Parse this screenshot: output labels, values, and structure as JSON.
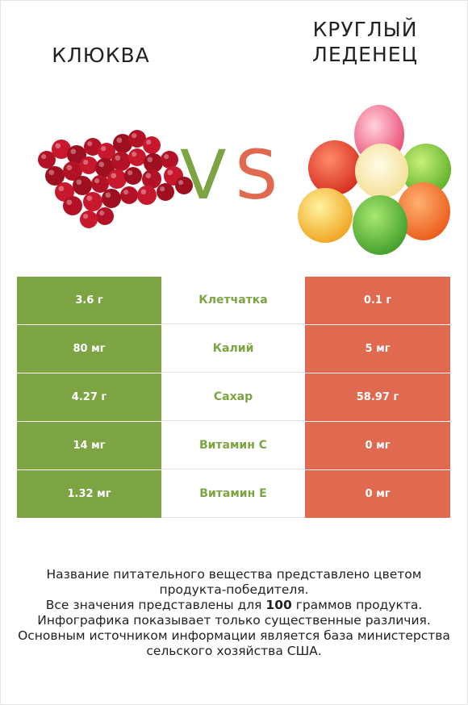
{
  "left_food": {
    "name": "КЛЮКВА"
  },
  "right_food": {
    "name_line1": "КРУГЛЫЙ",
    "name_line2": "ЛЕДЕНЕЦ"
  },
  "vs": {
    "v": "V",
    "s": "S",
    "v_color": "#7da443",
    "s_color": "#e06a4f"
  },
  "colors": {
    "left": "#7da443",
    "right": "#e06a4f"
  },
  "rows": [
    {
      "left": "3.6 г",
      "nutrient": "Клетчатка",
      "right": "0.1 г"
    },
    {
      "left": "80 мг",
      "nutrient": "Калий",
      "right": "5 мг"
    },
    {
      "left": "4.27 г",
      "nutrient": "Сахар",
      "right": "58.97 г"
    },
    {
      "left": "14 мг",
      "nutrient": "Витамин C",
      "right": "0 мг"
    },
    {
      "left": "1.32 мг",
      "nutrient": "Витамин E",
      "right": "0 мг"
    }
  ],
  "footer": {
    "line1": "Название питательного вещества представлено цветом",
    "line2": "продукта-победителя.",
    "line3_pre": "Все значения представлены для ",
    "line3_bold": "100",
    "line3_post": " граммов продукта.",
    "line4": "Инфографика показывает только существенные различия.",
    "line5": "Основным источником информации является база министерства",
    "line6": "сельского хозяйства США."
  }
}
